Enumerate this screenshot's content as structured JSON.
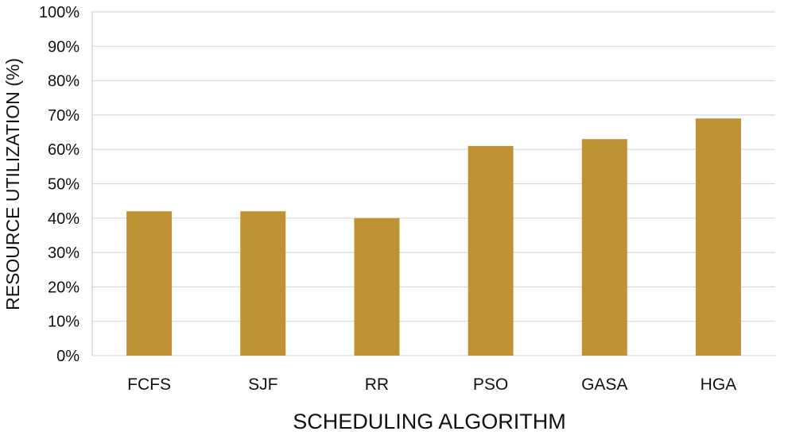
{
  "chart_data": {
    "type": "bar",
    "categories": [
      "FCFS",
      "SJF",
      "RR",
      "PSO",
      "GASA",
      "HGA"
    ],
    "values": [
      42,
      42,
      40,
      61,
      63,
      69
    ],
    "xlabel": "SCHEDULING ALGORITHM",
    "ylabel": "RESOURCE UTILIZATION (%)",
    "ylim": [
      0,
      100
    ],
    "y_ticks": [
      "0%",
      "10%",
      "20%",
      "30%",
      "40%",
      "50%",
      "60%",
      "70%",
      "80%",
      "90%",
      "100%"
    ],
    "y_tick_step": 10,
    "grid": true,
    "bar_color": "#bf9234",
    "grid_color": "#d9d9d9",
    "axis_color": "#c9d8e8"
  }
}
